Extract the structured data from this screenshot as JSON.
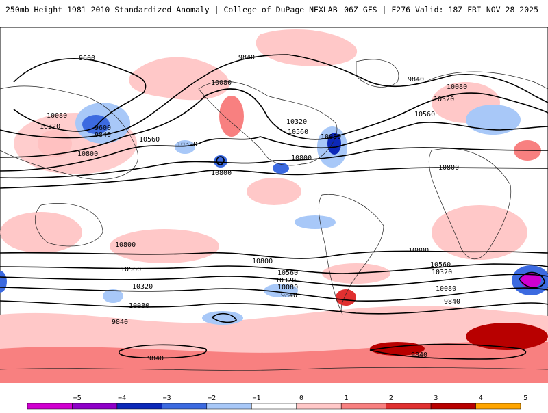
{
  "header": {
    "left_title": "250mb Height 1981–2010 Standardized Anomaly | College of DuPage NEXLAB",
    "right_title": "06Z GFS | F276 Valid: 18Z FRI NOV 28 2025"
  },
  "contour_labels": [
    {
      "id": "c1",
      "text": "9600"
    },
    {
      "id": "c2",
      "text": "9840"
    },
    {
      "id": "c3",
      "text": "9840"
    },
    {
      "id": "c4",
      "text": "10080"
    },
    {
      "id": "c5",
      "text": "10080"
    },
    {
      "id": "c6",
      "text": "10320"
    },
    {
      "id": "c7",
      "text": "9600"
    },
    {
      "id": "c8",
      "text": "9840"
    },
    {
      "id": "c9",
      "text": "10560"
    },
    {
      "id": "c10",
      "text": "10320"
    },
    {
      "id": "c11",
      "text": "10800"
    },
    {
      "id": "c12",
      "text": "10800"
    },
    {
      "id": "c13",
      "text": "10320"
    },
    {
      "id": "c14",
      "text": "10560"
    },
    {
      "id": "c15",
      "text": "10080"
    },
    {
      "id": "c16",
      "text": "10800"
    },
    {
      "id": "c17",
      "text": "10800"
    },
    {
      "id": "c18",
      "text": "10080"
    },
    {
      "id": "c19",
      "text": "10320"
    },
    {
      "id": "c20",
      "text": "10560"
    },
    {
      "id": "c21",
      "text": "10800"
    },
    {
      "id": "c22",
      "text": "10800"
    },
    {
      "id": "c23",
      "text": "10560"
    },
    {
      "id": "c24",
      "text": "10320"
    },
    {
      "id": "c25",
      "text": "10080"
    },
    {
      "id": "c26",
      "text": "9840"
    },
    {
      "id": "c27",
      "text": "10560"
    },
    {
      "id": "c28",
      "text": "10320"
    },
    {
      "id": "c29",
      "text": "10080"
    },
    {
      "id": "c30",
      "text": "9840"
    },
    {
      "id": "c31",
      "text": "10560"
    },
    {
      "id": "c32",
      "text": "10320"
    },
    {
      "id": "c33",
      "text": "10080"
    },
    {
      "id": "c34",
      "text": "9840"
    },
    {
      "id": "c35",
      "text": "10800"
    },
    {
      "id": "c36",
      "text": "9840"
    },
    {
      "id": "c37",
      "text": "9840"
    }
  ],
  "colorbar": {
    "ticks": [
      "−5",
      "−4",
      "−3",
      "−2",
      "−1",
      "0",
      "1",
      "2",
      "3",
      "4",
      "5"
    ],
    "colors": [
      "#d000d0",
      "#8e00c8",
      "#0c28b8",
      "#3c6ae0",
      "#a8c8f8",
      "#ffffff",
      "#ffc8c8",
      "#f88080",
      "#e03030",
      "#b80000",
      "#ffa500"
    ]
  }
}
